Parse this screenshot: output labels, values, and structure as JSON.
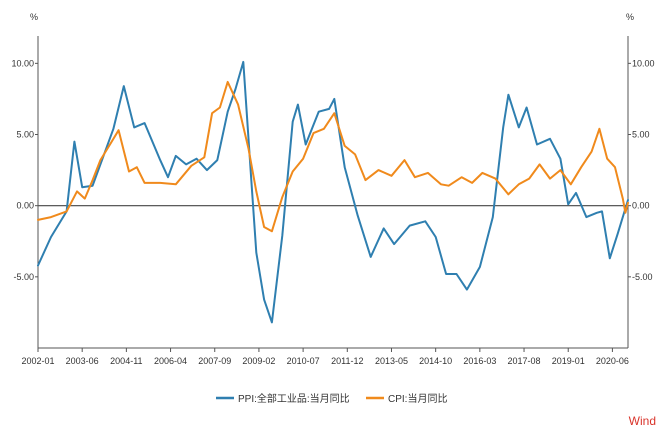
{
  "chart_data": {
    "type": "line",
    "unit_left": "%",
    "unit_right": "%",
    "y_ticks": [
      10,
      5,
      0,
      -5
    ],
    "y_tick_labels": [
      "10.00",
      "5.00",
      "0.00",
      "-5.00"
    ],
    "ylim": [
      -10,
      11.5
    ],
    "x_tick_labels": [
      "2002-01",
      "2003-06",
      "2004-11",
      "2006-04",
      "2007-09",
      "2009-02",
      "2010-07",
      "2011-12",
      "2013-05",
      "2014-10",
      "2016-03",
      "2017-08",
      "2019-01",
      "2020-06"
    ],
    "x_start": "2002-01",
    "x_end": "2020-12",
    "colors": {
      "PPI": "#2f7fb0",
      "CPI": "#f08a1c",
      "axis": "#555555",
      "grid": "#e6e6e6"
    },
    "source_label": "Wind",
    "series": [
      {
        "name": "PPI:全部工业品:当月同比",
        "key": "PPI",
        "points": [
          [
            "2002-01",
            -4.2
          ],
          [
            "2002-06",
            -2.2
          ],
          [
            "2002-12",
            -0.4
          ],
          [
            "2003-03",
            4.5
          ],
          [
            "2003-06",
            1.3
          ],
          [
            "2003-10",
            1.4
          ],
          [
            "2004-02",
            3.4
          ],
          [
            "2004-06",
            5.4
          ],
          [
            "2004-10",
            8.4
          ],
          [
            "2005-02",
            5.5
          ],
          [
            "2005-06",
            5.8
          ],
          [
            "2005-12",
            3.2
          ],
          [
            "2006-03",
            2.0
          ],
          [
            "2006-06",
            3.5
          ],
          [
            "2006-10",
            2.9
          ],
          [
            "2007-02",
            3.3
          ],
          [
            "2007-06",
            2.5
          ],
          [
            "2007-10",
            3.2
          ],
          [
            "2008-02",
            6.6
          ],
          [
            "2008-05",
            8.2
          ],
          [
            "2008-08",
            10.1
          ],
          [
            "2008-11",
            2.0
          ],
          [
            "2009-01",
            -3.3
          ],
          [
            "2009-04",
            -6.6
          ],
          [
            "2009-07",
            -8.2
          ],
          [
            "2009-11",
            -2.1
          ],
          [
            "2010-03",
            5.9
          ],
          [
            "2010-05",
            7.1
          ],
          [
            "2010-08",
            4.3
          ],
          [
            "2011-01",
            6.6
          ],
          [
            "2011-05",
            6.8
          ],
          [
            "2011-07",
            7.5
          ],
          [
            "2011-11",
            2.7
          ],
          [
            "2012-04",
            -0.7
          ],
          [
            "2012-09",
            -3.6
          ],
          [
            "2013-02",
            -1.6
          ],
          [
            "2013-06",
            -2.7
          ],
          [
            "2013-12",
            -1.4
          ],
          [
            "2014-06",
            -1.1
          ],
          [
            "2014-10",
            -2.2
          ],
          [
            "2015-02",
            -4.8
          ],
          [
            "2015-06",
            -4.8
          ],
          [
            "2015-10",
            -5.9
          ],
          [
            "2016-03",
            -4.3
          ],
          [
            "2016-08",
            -0.8
          ],
          [
            "2016-12",
            5.5
          ],
          [
            "2017-02",
            7.8
          ],
          [
            "2017-06",
            5.5
          ],
          [
            "2017-09",
            6.9
          ],
          [
            "2018-01",
            4.3
          ],
          [
            "2018-06",
            4.7
          ],
          [
            "2018-10",
            3.3
          ],
          [
            "2019-01",
            0.1
          ],
          [
            "2019-04",
            0.9
          ],
          [
            "2019-08",
            -0.8
          ],
          [
            "2019-12",
            -0.5
          ],
          [
            "2020-02",
            -0.4
          ],
          [
            "2020-05",
            -3.7
          ],
          [
            "2020-08",
            -2.0
          ],
          [
            "2020-12",
            0.4
          ]
        ]
      },
      {
        "name": "CPI:当月同比",
        "key": "CPI",
        "points": [
          [
            "2002-01",
            -1.0
          ],
          [
            "2002-06",
            -0.8
          ],
          [
            "2002-12",
            -0.4
          ],
          [
            "2003-04",
            1.0
          ],
          [
            "2003-07",
            0.5
          ],
          [
            "2003-10",
            1.8
          ],
          [
            "2004-01",
            3.2
          ],
          [
            "2004-05",
            4.4
          ],
          [
            "2004-08",
            5.3
          ],
          [
            "2004-12",
            2.4
          ],
          [
            "2005-03",
            2.7
          ],
          [
            "2005-06",
            1.6
          ],
          [
            "2005-12",
            1.6
          ],
          [
            "2006-06",
            1.5
          ],
          [
            "2006-12",
            2.8
          ],
          [
            "2007-05",
            3.4
          ],
          [
            "2007-08",
            6.5
          ],
          [
            "2007-11",
            6.9
          ],
          [
            "2008-02",
            8.7
          ],
          [
            "2008-06",
            7.1
          ],
          [
            "2008-10",
            4.0
          ],
          [
            "2009-01",
            1.0
          ],
          [
            "2009-04",
            -1.5
          ],
          [
            "2009-07",
            -1.8
          ],
          [
            "2009-11",
            0.6
          ],
          [
            "2010-03",
            2.4
          ],
          [
            "2010-07",
            3.3
          ],
          [
            "2010-11",
            5.1
          ],
          [
            "2011-03",
            5.4
          ],
          [
            "2011-07",
            6.5
          ],
          [
            "2011-11",
            4.2
          ],
          [
            "2012-03",
            3.6
          ],
          [
            "2012-07",
            1.8
          ],
          [
            "2012-12",
            2.5
          ],
          [
            "2013-05",
            2.1
          ],
          [
            "2013-10",
            3.2
          ],
          [
            "2014-02",
            2.0
          ],
          [
            "2014-07",
            2.3
          ],
          [
            "2014-12",
            1.5
          ],
          [
            "2015-03",
            1.4
          ],
          [
            "2015-08",
            2.0
          ],
          [
            "2015-12",
            1.6
          ],
          [
            "2016-04",
            2.3
          ],
          [
            "2016-09",
            1.9
          ],
          [
            "2017-02",
            0.8
          ],
          [
            "2017-06",
            1.5
          ],
          [
            "2017-10",
            1.9
          ],
          [
            "2018-02",
            2.9
          ],
          [
            "2018-06",
            1.9
          ],
          [
            "2018-10",
            2.5
          ],
          [
            "2019-02",
            1.5
          ],
          [
            "2019-06",
            2.7
          ],
          [
            "2019-10",
            3.8
          ],
          [
            "2020-01",
            5.4
          ],
          [
            "2020-04",
            3.3
          ],
          [
            "2020-07",
            2.7
          ],
          [
            "2020-10",
            0.5
          ],
          [
            "2020-11",
            -0.5
          ],
          [
            "2020-12",
            0.2
          ]
        ]
      }
    ]
  }
}
